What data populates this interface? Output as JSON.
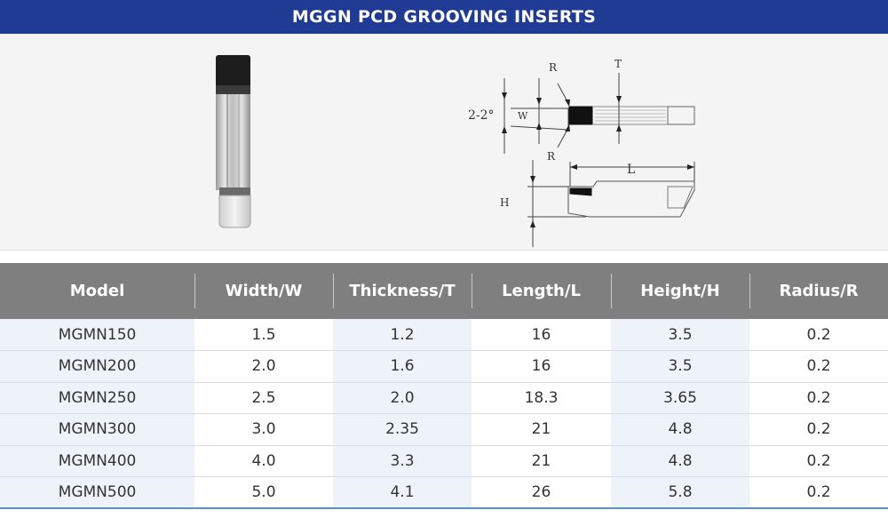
{
  "title": "MGGN PCD GROOVING INSERTS",
  "figure": {
    "labels": {
      "angle": "2-2°",
      "width": "W",
      "radius_top": "R",
      "radius_bottom": "R",
      "thickness": "T",
      "length": "L",
      "height": "H"
    }
  },
  "table": {
    "headers": [
      "Model",
      "Width/W",
      "Thickness/T",
      "Length/L",
      "Height/H",
      "Radius/R"
    ],
    "rows": [
      [
        "MGMN150",
        "1.5",
        "1.2",
        "16",
        "3.5",
        "0.2"
      ],
      [
        "MGMN200",
        "2.0",
        "1.6",
        "16",
        "3.5",
        "0.2"
      ],
      [
        "MGMN250",
        "2.5",
        "2.0",
        "18.3",
        "3.65",
        "0.2"
      ],
      [
        "MGMN300",
        "3.0",
        "2.35",
        "21",
        "4.8",
        "0.2"
      ],
      [
        "MGMN400",
        "4.0",
        "3.3",
        "21",
        "4.8",
        "0.2"
      ],
      [
        "MGMN500",
        "5.0",
        "4.1",
        "26",
        "5.8",
        "0.2"
      ]
    ]
  }
}
